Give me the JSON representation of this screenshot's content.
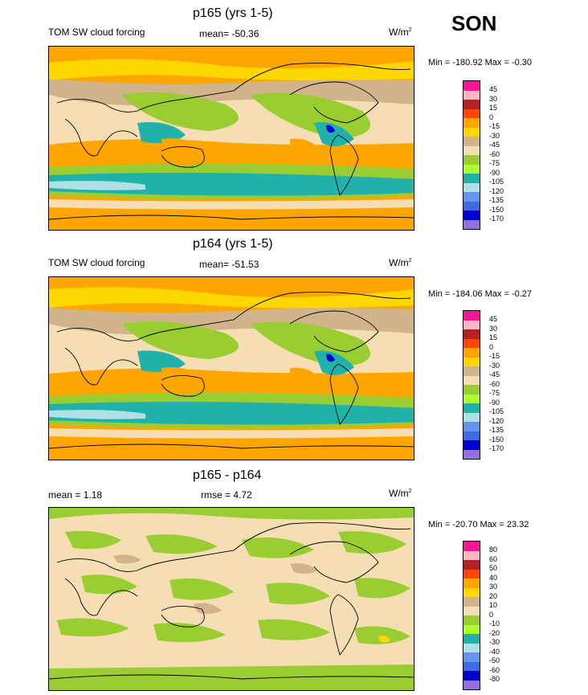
{
  "season": "SON",
  "panels": [
    {
      "title": "p165 (yrs 1-5)",
      "left_label": "TOM SW cloud forcing",
      "center_label": "mean= -50.36",
      "units": "W/m",
      "units_sup": "2",
      "minmax": "Min = -180.92 Max =  -0.30",
      "legend_labels": [
        "45",
        "30",
        "15",
        "0",
        "-15",
        "-30",
        "-45",
        "-60",
        "-75",
        "-90",
        "-105",
        "-120",
        "-135",
        "-150",
        "-170"
      ]
    },
    {
      "title": "p164 (yrs 1-5)",
      "left_label": "TOM SW cloud forcing",
      "center_label": "mean= -51.53",
      "units": "W/m",
      "units_sup": "2",
      "minmax": "Min = -184.06 Max =  -0.27",
      "legend_labels": [
        "45",
        "30",
        "15",
        "0",
        "-15",
        "-30",
        "-45",
        "-60",
        "-75",
        "-90",
        "-105",
        "-120",
        "-135",
        "-150",
        "-170"
      ]
    },
    {
      "title": "p165 - p164",
      "left_label": "mean =   1.18",
      "center_label": "rmse =   4.72",
      "units": "W/m",
      "units_sup": "2",
      "minmax": "Min = -20.70 Max =  23.32",
      "legend_labels": [
        "80",
        "60",
        "50",
        "40",
        "30",
        "20",
        "10",
        "0",
        "-10",
        "-20",
        "-30",
        "-40",
        "-50",
        "-60",
        "-80"
      ]
    }
  ],
  "colors": {
    "scale": [
      "#ff1493",
      "#ffb6c1",
      "#b22222",
      "#ff4500",
      "#ffa500",
      "#ffd700",
      "#d2b48c",
      "#f5deb3",
      "#9acd32",
      "#adff2f",
      "#20b2aa",
      "#b0e0e6",
      "#6495ed",
      "#4169e1",
      "#0000cd",
      "#9370db"
    ]
  }
}
